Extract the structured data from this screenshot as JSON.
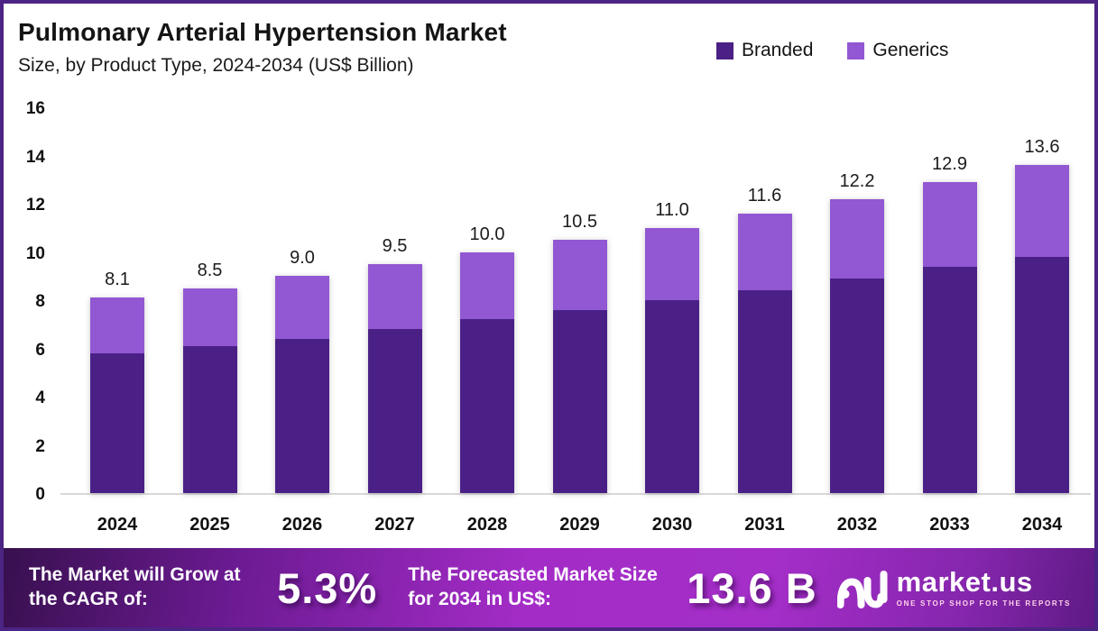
{
  "header": {
    "title": "Pulmonary Arterial Hypertension Market",
    "subtitle": "Size, by Product Type, 2024-2034 (US$ Billion)"
  },
  "legend": [
    {
      "label": "Branded",
      "color": "#4a2086"
    },
    {
      "label": "Generics",
      "color": "#9257d2"
    }
  ],
  "chart_data": {
    "type": "bar",
    "stacked": true,
    "title": "Pulmonary Arterial Hypertension Market",
    "subtitle": "Size, by Product Type, 2024-2034 (US$ Billion)",
    "unit": "US$ Billion",
    "categories": [
      "2024",
      "2025",
      "2026",
      "2027",
      "2028",
      "2029",
      "2030",
      "2031",
      "2032",
      "2033",
      "2034"
    ],
    "series": [
      {
        "name": "Branded",
        "color": "#4a2086",
        "values": [
          5.8,
          6.1,
          6.4,
          6.8,
          7.2,
          7.6,
          8.0,
          8.4,
          8.9,
          9.4,
          9.8
        ]
      },
      {
        "name": "Generics",
        "color": "#9257d2",
        "values": [
          2.3,
          2.4,
          2.6,
          2.7,
          2.8,
          2.9,
          3.0,
          3.2,
          3.3,
          3.5,
          3.8
        ]
      }
    ],
    "totals": [
      8.1,
      8.5,
      9.0,
      9.5,
      10.0,
      10.5,
      11.0,
      11.6,
      12.2,
      12.9,
      13.6
    ],
    "total_labels": [
      "8.1",
      "8.5",
      "9.0",
      "9.5",
      "10.0",
      "10.5",
      "11.0",
      "11.6",
      "12.2",
      "12.9",
      "13.6"
    ],
    "y_ticks": [
      16,
      14,
      12,
      10,
      8,
      6,
      4,
      2,
      0
    ],
    "ylim": [
      0,
      16
    ],
    "grid": false,
    "legend_position": "top-right",
    "xlabel": "",
    "ylabel": ""
  },
  "footer": {
    "cagr_label": "The Market will Grow at the CAGR of:",
    "cagr_value": "5.3%",
    "forecast_label": "The Forecasted Market Size for 2034 in US$:",
    "forecast_value": "13.6 B",
    "logo_name": "market.us",
    "logo_tagline": "ONE STOP SHOP FOR THE REPORTS"
  }
}
